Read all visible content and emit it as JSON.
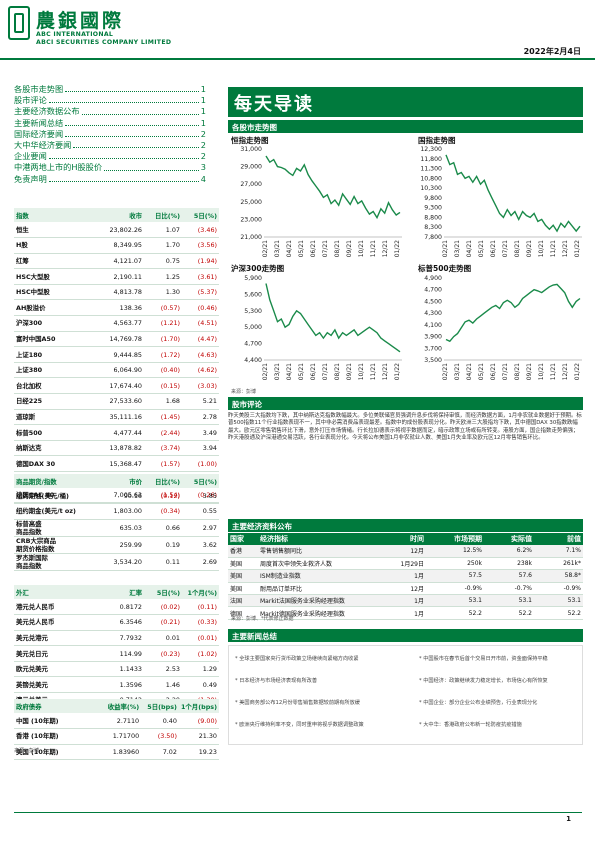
{
  "header": {
    "bank_cn": "農銀國際",
    "bank_en1": "ABC INTERNATIONAL",
    "bank_en2": "ABCI SECURITIES COMPANY LIMITED",
    "date": "2022年2月4日"
  },
  "toc": [
    {
      "title": "各股市走势图",
      "page": "1"
    },
    {
      "title": "股市评论",
      "page": "1"
    },
    {
      "title": "主要经济数据公布",
      "page": "1"
    },
    {
      "title": "主要新闻总结",
      "page": "1"
    },
    {
      "title": "国际经济要闻",
      "page": "2"
    },
    {
      "title": "大中华经济要闻",
      "page": "2"
    },
    {
      "title": "企业要闻",
      "page": "2"
    },
    {
      "title": "中港两地上市的H股股价",
      "page": "3"
    },
    {
      "title": "免责声明",
      "page": "4"
    }
  ],
  "banner": "每天导读",
  "sections": {
    "charts": "各股市走势图",
    "comment": "股市评论",
    "econ": "主要经济资料公布",
    "news": "主要新闻总结"
  },
  "indices_table": {
    "headers": [
      "指数",
      "收市",
      "日比(%)",
      "5日(%)"
    ],
    "rows": [
      [
        "恒生",
        "23,802.26",
        "1.07",
        "(3.46)"
      ],
      [
        "H股",
        "8,349.95",
        "1.70",
        "(3.56)"
      ],
      [
        "红筹",
        "4,121.07",
        "0.75",
        "(1.94)"
      ],
      [
        "HSC大型股",
        "2,190.11",
        "1.25",
        "(3.61)"
      ],
      [
        "HSC中型股",
        "4,813.78",
        "1.30",
        "(5.37)"
      ],
      [
        "AH股溢价",
        "138.36",
        "(0.57)",
        "(0.46)"
      ],
      [
        "沪深300",
        "4,563.77",
        "(1.21)",
        "(4.51)"
      ],
      [
        "富时中国A50",
        "14,769.78",
        "(1.70)",
        "(4.47)"
      ],
      [
        "上证180",
        "9,444.85",
        "(1.72)",
        "(4.63)"
      ],
      [
        "上证380",
        "6,064.90",
        "(0.40)",
        "(4.62)"
      ],
      [
        "台北加权",
        "17,674.40",
        "(0.15)",
        "(3.03)"
      ],
      [
        "日经225",
        "27,533.60",
        "1.68",
        "5.21"
      ],
      [
        "道琼斯",
        "35,111.16",
        "(1.45)",
        "2.78"
      ],
      [
        "标普500",
        "4,477.44",
        "(2.44)",
        "3.49"
      ],
      [
        "纳斯达克",
        "13,878.82",
        "(3.74)",
        "3.94"
      ],
      [
        "德国DAX 30",
        "15,368.47",
        "(1.57)",
        "(1.00)"
      ],
      [
        "富时100",
        "7,528.84",
        "(0.71)",
        "(0.34)"
      ],
      [
        "法国CAC 40",
        "7,005.63",
        "(1.54)",
        "(0.26)"
      ]
    ]
  },
  "commodities_table": {
    "headers": [
      "商品期货/指数",
      "市价",
      "日比(%)",
      "5日(%)"
    ],
    "rows": [
      [
        "纽约期油(美元/桶)",
        "90.16",
        "(0.12)",
        "3.85"
      ],
      [
        "纽约期金(美元/t oz)",
        "1,803.00",
        "(0.34)",
        "0.55"
      ],
      [
        "标普高盛\n商品指数",
        "635.03",
        "0.66",
        "2.97"
      ],
      [
        "CRB大宗商品\n期货价格指数",
        "259.99",
        "0.19",
        "3.62"
      ],
      [
        "罗杰斯国际\n商品指数",
        "3,534.20",
        "0.11",
        "2.69"
      ]
    ]
  },
  "fx_table": {
    "headers": [
      "外汇",
      "汇率",
      "5日(%)",
      "1个月(%)"
    ],
    "rows": [
      [
        "港元兑人民币",
        "0.8172",
        "(0.02)",
        "(0.11)"
      ],
      [
        "美元兑人民币",
        "6.3546",
        "(0.21)",
        "(0.33)"
      ],
      [
        "美元兑港元",
        "7.7932",
        "0.01",
        "(0.01)"
      ],
      [
        "美元兑日元",
        "114.99",
        "(0.23)",
        "(1.02)"
      ],
      [
        "欧元兑美元",
        "1.1433",
        "2.53",
        "1.29"
      ],
      [
        "英镑兑美元",
        "1.3596",
        "1.46",
        "0.49"
      ],
      [
        "澳元兑美元",
        "0.7142",
        "2.20",
        "(1.30)"
      ]
    ]
  },
  "bonds_table": {
    "headers": [
      "政府债券",
      "收益率(%)",
      "5日(bps)",
      "1个月(bps)"
    ],
    "rows": [
      [
        "中国 (10年期)",
        "2.7110",
        "0.40",
        "(9.00)"
      ],
      [
        "香港 (10年期)",
        "1.71700",
        "(3.50)",
        "21.30"
      ],
      [
        "美国 (10年期)",
        "1.83960",
        "7.02",
        "19.23"
      ]
    ],
    "source": "来源：彭博"
  },
  "charts": [
    {
      "title": "恒指走势图",
      "type": "line",
      "ylim": [
        21000,
        31000
      ],
      "yticks": [
        "31,000",
        "29,000",
        "27,000",
        "25,000",
        "23,000",
        "21,000"
      ],
      "xticks": [
        "02/21",
        "03/21",
        "04/21",
        "05/21",
        "06/21",
        "07/21",
        "08/21",
        "09/21",
        "10/21",
        "11/21",
        "12/21",
        "01/22"
      ],
      "values": [
        30200,
        29500,
        29800,
        29000,
        28900,
        28700,
        28300,
        28000,
        28800,
        28500,
        29200,
        28100,
        27400,
        26800,
        26200,
        25500,
        25800,
        24800,
        25200,
        24600,
        25900,
        25300,
        24700,
        25600,
        24800,
        25100,
        24300,
        23600,
        23900,
        23200,
        24200,
        23700,
        24900,
        24100,
        23500,
        23800
      ]
    },
    {
      "title": "国指走势图",
      "type": "line",
      "ylim": [
        7800,
        12300
      ],
      "yticks": [
        "12,300",
        "11,800",
        "11,300",
        "10,800",
        "10,300",
        "9,800",
        "9,300",
        "8,800",
        "8,300",
        "7,800"
      ],
      "xticks": [
        "02/21",
        "03/21",
        "04/21",
        "05/21",
        "06/21",
        "07/21",
        "08/21",
        "09/21",
        "10/21",
        "11/21",
        "12/21",
        "01/22"
      ],
      "values": [
        12000,
        11500,
        11600,
        11000,
        11100,
        10800,
        10900,
        10600,
        10900,
        10500,
        10700,
        10200,
        9800,
        9400,
        9000,
        8800,
        9200,
        8900,
        9100,
        8700,
        9100,
        8900,
        8800,
        9000,
        8600,
        8700,
        8400,
        8200,
        8400,
        8100,
        8500,
        8300,
        8600,
        8350,
        8100,
        8350
      ]
    },
    {
      "title": "沪深300走势图",
      "type": "line",
      "ylim": [
        4400,
        5900
      ],
      "yticks": [
        "5,900",
        "5,600",
        "5,300",
        "5,000",
        "4,700",
        "4,400"
      ],
      "xticks": [
        "02/21",
        "03/21",
        "04/21",
        "05/21",
        "06/21",
        "07/21",
        "08/21",
        "09/21",
        "10/21",
        "11/21",
        "12/21",
        "01/22"
      ],
      "values": [
        5800,
        5500,
        5300,
        5100,
        5150,
        5000,
        5050,
        5200,
        5300,
        5250,
        5150,
        5050,
        4950,
        4850,
        4900,
        4800,
        4900,
        4850,
        4950,
        4800,
        4900,
        4850,
        4900,
        4950,
        4850,
        4900,
        4950,
        5000,
        4950,
        4900,
        4800,
        4750,
        4700,
        4650,
        4600,
        4550
      ]
    },
    {
      "title": "标普500走势图",
      "type": "line",
      "ylim": [
        3500,
        4900
      ],
      "yticks": [
        "4,900",
        "4,700",
        "4,500",
        "4,300",
        "4,100",
        "3,900",
        "3,700",
        "3,500"
      ],
      "xticks": [
        "02/21",
        "03/21",
        "04/21",
        "05/21",
        "06/21",
        "07/21",
        "08/21",
        "09/21",
        "10/21",
        "11/21",
        "12/21",
        "01/22"
      ],
      "values": [
        3850,
        3820,
        3900,
        3950,
        4050,
        4150,
        4180,
        4130,
        4200,
        4250,
        4300,
        4350,
        4400,
        4430,
        4380,
        4480,
        4520,
        4480,
        4400,
        4450,
        4550,
        4600,
        4650,
        4700,
        4680,
        4650,
        4700,
        4750,
        4780,
        4790,
        4720,
        4650,
        4500,
        4400,
        4500,
        4550
      ]
    }
  ],
  "chart_source": "来源：彭博",
  "comment": "昨天美股三大指数均下跌，其中纳斯达克指数跌幅最大。多位美联储官员强调升息步伐将保持审慎，而经济数据方面，1月非农就业数据好于预期。标普500指数11个行业指数表现不一，其中非必需消费品表现最差。指数中的成份股表现分化。昨天欧洲三大股指均下跌，其中德国DAX 30指数跌幅最大。欧元区零售销售环比下滑，意外打压市场情绪。行长拉加德表示将视乎数据而定，暗示政策立场或有所转变。港股方面，国企指数走势偏强；昨天港股通及沪深港通交易活跃，各行业表现分化。今天将公布美国1月非农就业人数、美国1月失业率及欧元区12月零售销售环比。",
  "econ": {
    "headers": [
      "国家",
      "经济指标",
      "时间",
      "市场预期",
      "实际值",
      "前值"
    ],
    "rows": [
      [
        "香港",
        "零售销售额同比",
        "12月",
        "12.5%",
        "6.2%",
        "7.1%"
      ],
      [
        "美国",
        "周度首次申领失业救济人数",
        "1月29日",
        "250k",
        "238k",
        "261k*"
      ],
      [
        "美国",
        "ISM制造业指数",
        "1月",
        "57.5",
        "57.6",
        "58.8*"
      ],
      [
        "美国",
        "耐用品订单环比",
        "12月",
        "-0.9%",
        "-0.7%",
        "-0.9%"
      ],
      [
        "法国",
        "Markit法国服务业采购经理指数",
        "1月",
        "53.1",
        "53.1",
        "53.1"
      ],
      [
        "德国",
        "Markit德国服务业采购经理指数",
        "1月",
        "52.2",
        "52.2",
        "52.2"
      ]
    ],
    "source": "来源：彭博、*代表修正数据"
  },
  "news": [
    "全球主要国家央行货币政策立场继续向紧缩方向收紧",
    "日本经济与市场经济表现有所改善",
    "美国商务部公布12月份零售销售数据较前期有所放缓",
    "欧洲央行维持利率不变，同时重申将视乎数据调整政策",
    "中国股市在春节后首个交易日开市前，资金面保持平稳",
    "中国经济：政策继续发力稳定增长，市场信心有所恢复",
    "中国企业：部分企业公布业绩预告，行业表现分化",
    "大中华：香港政府公布新一轮防疫抗疫措施"
  ],
  "page_number": "1"
}
